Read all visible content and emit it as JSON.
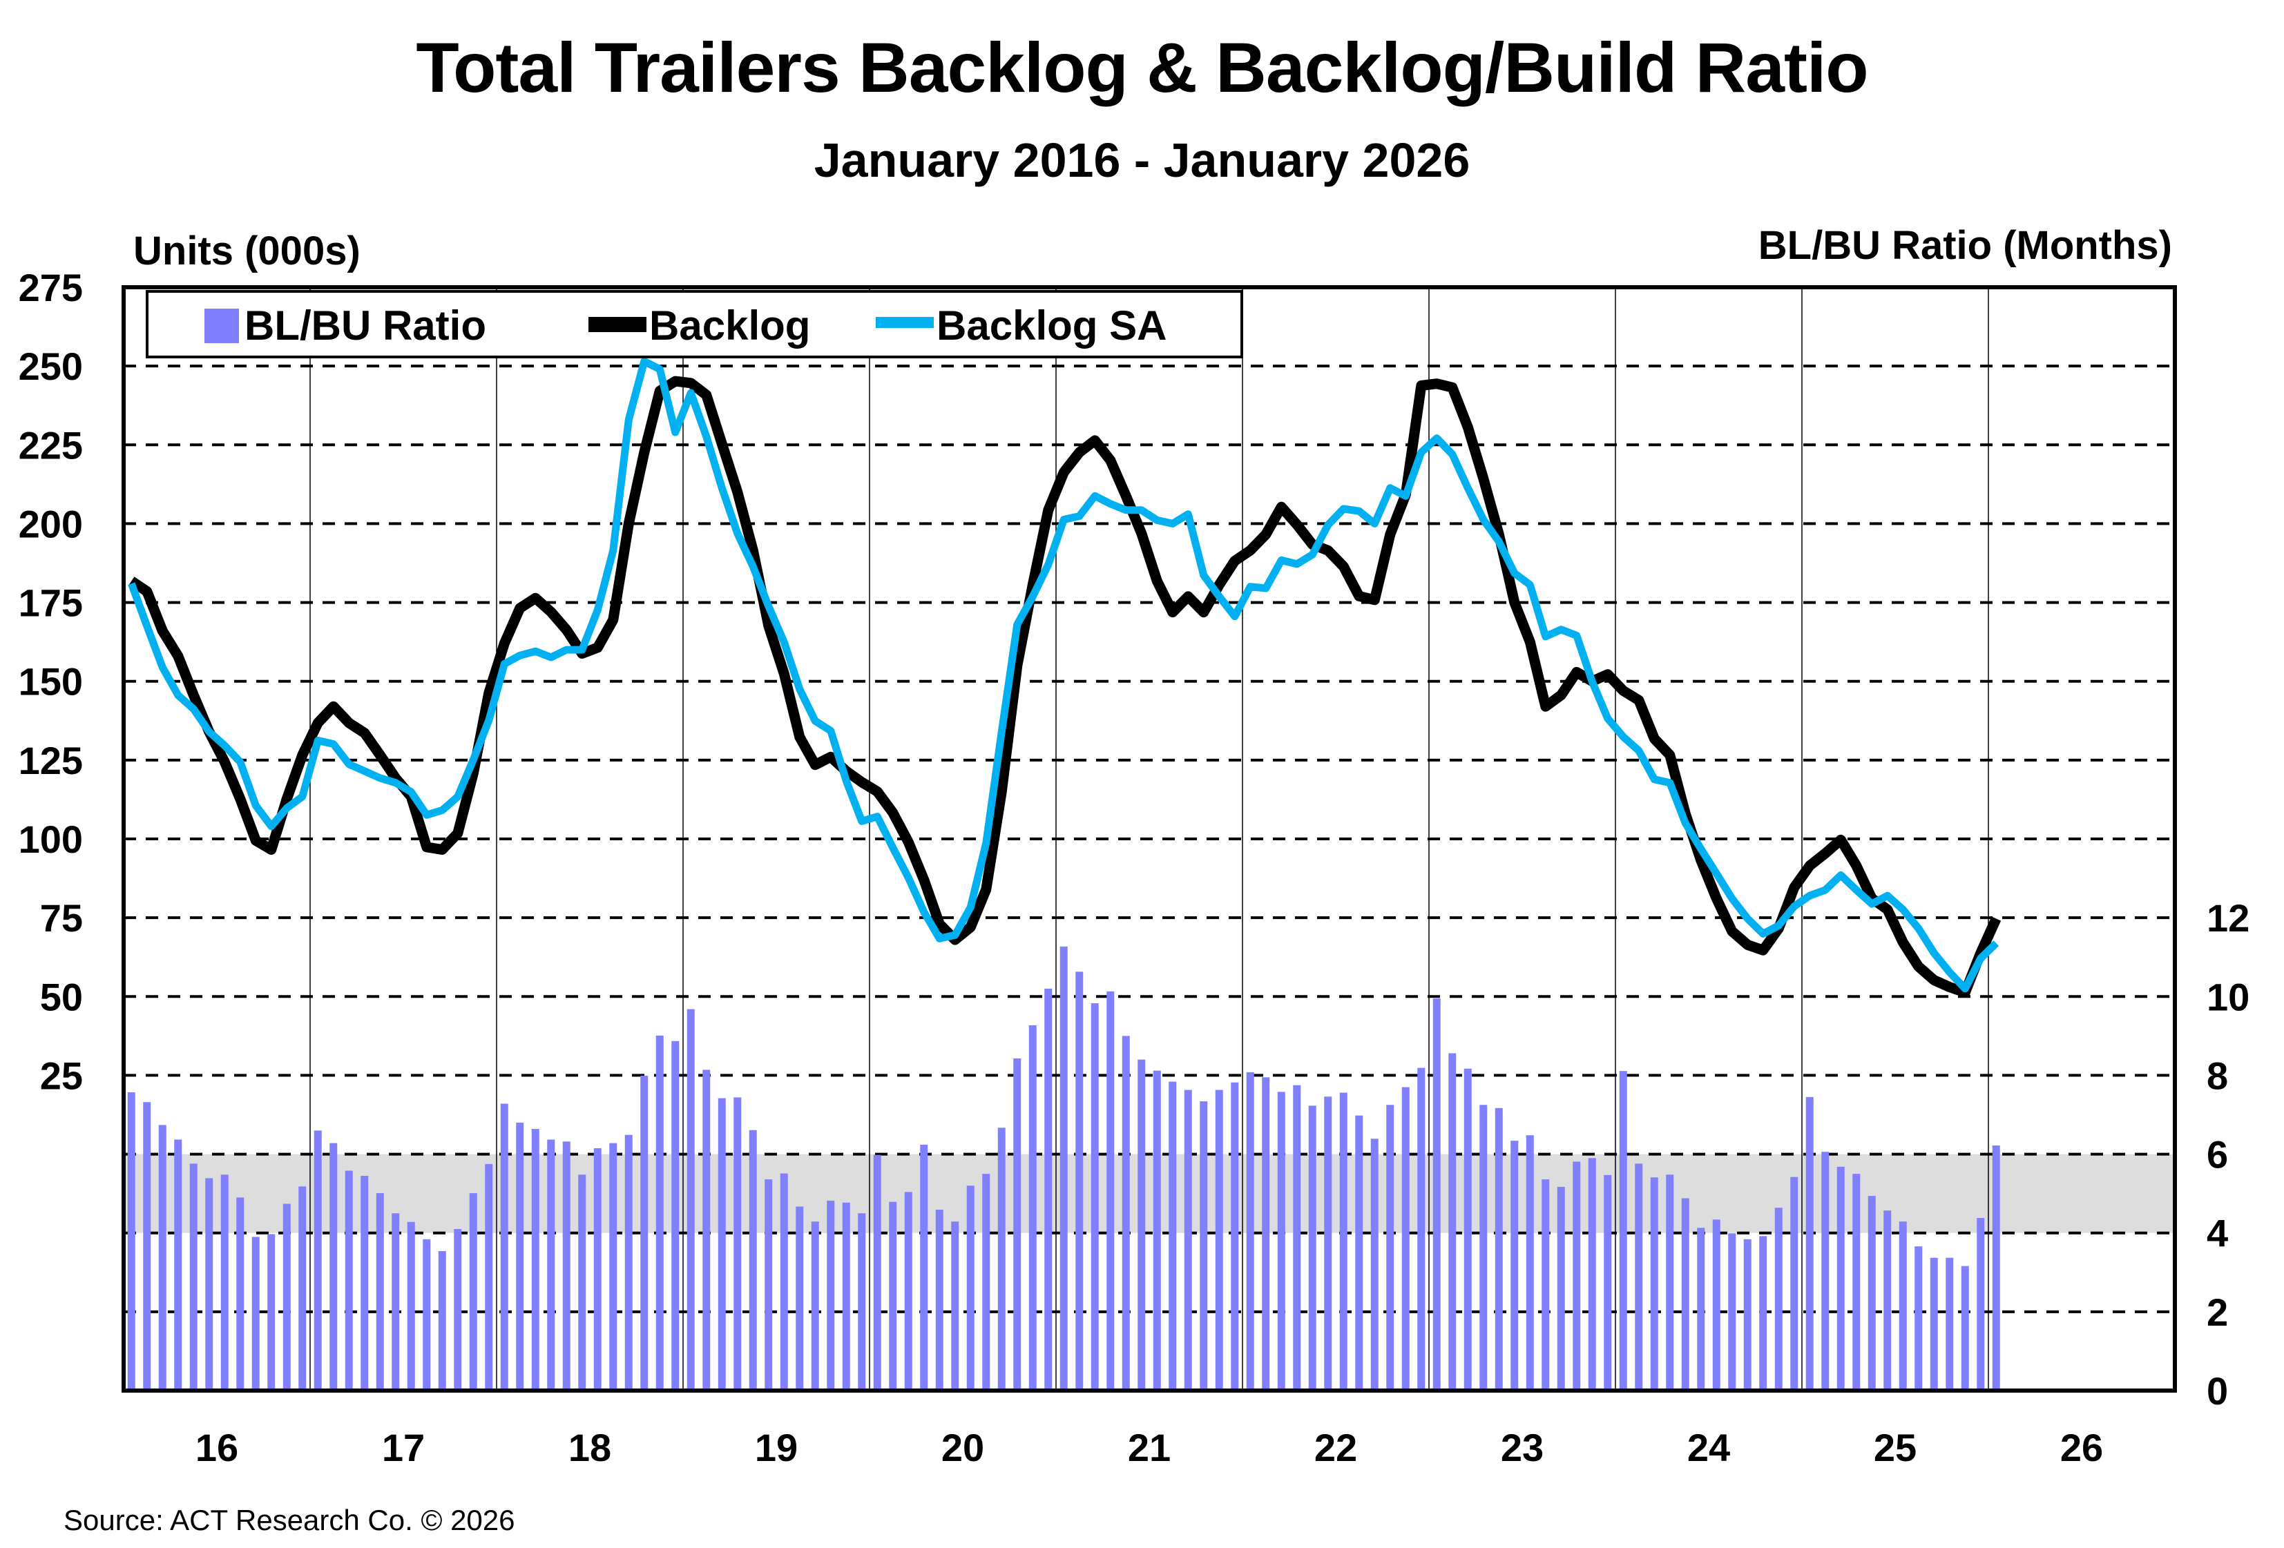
{
  "header": {
    "title": "Total Trailers Backlog & Backlog/Build Ratio",
    "subtitle": "January 2016 - January 2026"
  },
  "axes": {
    "left_title": "Units (000s)",
    "right_title": "BL/BU Ratio (Months)"
  },
  "footer": {
    "source": "Source: ACT Research Co. © 2026"
  },
  "colors": {
    "ratio_bar": "#8080FF",
    "backlog": "#000000",
    "backlog_sa": "#00B0F0",
    "target_band": "#DDDDDD"
  },
  "chart_data": {
    "type": "bar+line",
    "title": "Total Trailers Backlog & Backlog/Build Ratio",
    "subtitle": "January 2016 - January 2026",
    "xlabel": "",
    "ylabel": "Units (000s)",
    "y2label": "BL/BU Ratio (Months)",
    "x_tick_labels": [
      "16",
      "17",
      "18",
      "19",
      "20",
      "21",
      "22",
      "23",
      "24",
      "25",
      "26"
    ],
    "y_ticks": [
      25,
      50,
      75,
      100,
      125,
      150,
      175,
      200,
      225,
      250,
      275
    ],
    "y2_ticks": [
      0,
      2,
      4,
      6,
      8,
      10,
      12
    ],
    "ylim": [
      -75,
      275
    ],
    "y2lim": [
      0,
      28
    ],
    "grid": true,
    "shaded_band": {
      "axis": "y2",
      "from": 4,
      "to": 6
    },
    "legend": {
      "position": "top-left-inside",
      "entries": [
        "BL/BU Ratio",
        "Backlog",
        "Backlog SA"
      ]
    },
    "period": {
      "start": "2016-01",
      "end": "2026-01",
      "frequency": "monthly",
      "count": 121
    },
    "series": [
      {
        "name": "BL/BU Ratio",
        "type": "bar",
        "axis": "right",
        "values": [
          7.57,
          7.32,
          6.74,
          6.37,
          5.76,
          5.39,
          5.48,
          4.9,
          3.9,
          3.97,
          4.74,
          5.18,
          6.6,
          6.28,
          5.58,
          5.45,
          5.01,
          4.5,
          4.28,
          3.84,
          3.54,
          4.1,
          5.01,
          5.75,
          7.28,
          6.8,
          6.64,
          6.37,
          6.32,
          5.48,
          6.15,
          6.28,
          6.49,
          7.99,
          9.01,
          8.87,
          9.68,
          8.14,
          7.42,
          7.44,
          6.61,
          5.36,
          5.51,
          4.67,
          4.29,
          4.82,
          4.77,
          4.5,
          5.98,
          4.79,
          5.04,
          6.24,
          4.59,
          4.29,
          5.2,
          5.5,
          6.67,
          8.43,
          9.27,
          10.2,
          11.27,
          10.63,
          9.83,
          10.13,
          9.0,
          8.4,
          8.12,
          7.84,
          7.63,
          7.34,
          7.63,
          7.82,
          8.08,
          7.95,
          7.58,
          7.75,
          7.23,
          7.46,
          7.56,
          6.98,
          6.39,
          7.25,
          7.7,
          8.19,
          9.95,
          8.56,
          8.17,
          7.25,
          7.17,
          6.34,
          6.48,
          5.36,
          5.17,
          5.81,
          5.9,
          5.47,
          8.11,
          5.76,
          5.41,
          5.48,
          4.88,
          4.13,
          4.34,
          3.99,
          3.84,
          3.92,
          4.64,
          5.42,
          7.45,
          6.06,
          5.68,
          5.5,
          4.94,
          4.57,
          4.29,
          3.66,
          3.37,
          3.37,
          3.16,
          4.38,
          6.22
        ]
      },
      {
        "name": "Backlog",
        "type": "line",
        "axis": "left",
        "values": [
          181.8,
          178.5,
          166,
          158,
          145.6,
          134,
          124.4,
          112.7,
          99.5,
          96.6,
          112.7,
          126.6,
          136.8,
          142,
          136.8,
          133.6,
          126.6,
          119.3,
          113.4,
          97.4,
          96.6,
          101.8,
          120.8,
          146.3,
          162,
          173.2,
          176.4,
          172,
          166.3,
          158.8,
          160.7,
          169.5,
          200,
          222.6,
          242.1,
          245.2,
          244.6,
          240.8,
          225.3,
          210,
          191.5,
          167.6,
          152.4,
          132.3,
          123.5,
          126,
          121.5,
          118,
          115,
          108.3,
          99,
          87,
          73,
          68,
          72,
          84,
          115,
          155,
          180.6,
          204.3,
          216.3,
          222.6,
          226.4,
          220.1,
          208.8,
          196.9,
          181.8,
          171.9,
          176.9,
          171.9,
          180.6,
          188.2,
          191.5,
          196.6,
          205.3,
          199.7,
          193.4,
          191.5,
          186.4,
          177,
          175.8,
          196.6,
          209.2,
          243.8,
          244.4,
          243.2,
          230.6,
          214.3,
          196.6,
          175,
          162.5,
          142,
          145.6,
          152.9,
          150,
          152.2,
          147,
          144,
          131.8,
          126.6,
          108,
          93.2,
          81.1,
          70.7,
          66.4,
          64.7,
          71.6,
          84.6,
          91.5,
          95.4,
          99.7,
          91.5,
          81.1,
          77.6,
          67.2,
          59.5,
          55.2,
          53,
          51.3,
          63.8,
          74.7
        ]
      },
      {
        "name": "Backlog SA",
        "type": "line",
        "axis": "left",
        "values": [
          181,
          167.5,
          154.4,
          145.6,
          141.2,
          134,
          129.6,
          124.4,
          110.6,
          104,
          109.8,
          113.4,
          131.2,
          130.1,
          123.7,
          121.5,
          119.3,
          117.8,
          114.9,
          107.6,
          109.1,
          113.4,
          125.1,
          137.6,
          155.5,
          158.2,
          159.5,
          157.6,
          160,
          160,
          172.6,
          191.5,
          233,
          251.5,
          249,
          229,
          241.5,
          227.6,
          211.3,
          196.9,
          186.4,
          173.8,
          162.4,
          147.5,
          137.4,
          134.3,
          118.4,
          105.6,
          107.1,
          97.2,
          87.7,
          76.8,
          68.4,
          69.5,
          78.3,
          98.7,
          134,
          168,
          176.9,
          187,
          201.3,
          202.4,
          208.8,
          206.3,
          204.3,
          204.3,
          201.1,
          200,
          203,
          183.6,
          176.9,
          170.6,
          180,
          179.5,
          188.4,
          187.2,
          190.2,
          199.6,
          204.7,
          204,
          200,
          211.3,
          208.8,
          222.6,
          227.1,
          222,
          211.3,
          201.3,
          194.3,
          184.3,
          180.6,
          164.2,
          166.4,
          164.5,
          149.9,
          138.2,
          132.4,
          128,
          118.9,
          117.8,
          105,
          96.8,
          89,
          81.1,
          74.7,
          69.9,
          72.5,
          78.6,
          82,
          83.8,
          88.5,
          83.8,
          79.4,
          82,
          77.6,
          71.6,
          63.8,
          57.7,
          52.5,
          62.1,
          66.9
        ]
      }
    ]
  }
}
